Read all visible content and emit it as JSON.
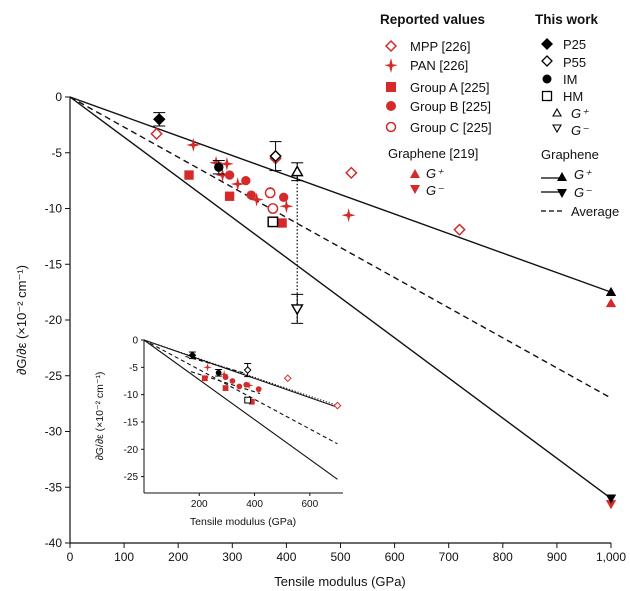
{
  "chart_data": [
    {
      "type": "scatter",
      "xlabel": "Tensile modulus (GPa)",
      "ylabel": "∂G/∂ε (×10⁻² cm⁻¹)",
      "xlim": [
        0,
        1000
      ],
      "ylim": [
        -40,
        0
      ],
      "xticks": [
        "0",
        "100",
        "200",
        "300",
        "400",
        "500",
        "600",
        "700",
        "800",
        "900",
        "1,000"
      ],
      "xtick_values": [
        0,
        100,
        200,
        300,
        400,
        500,
        600,
        700,
        800,
        900,
        1000
      ],
      "yticks": [
        "0",
        "-5",
        "-10",
        "-15",
        "-20",
        "-25",
        "-30",
        "-35",
        "-40"
      ],
      "ytick_values": [
        0,
        -5,
        -10,
        -15,
        -20,
        -25,
        -30,
        -35,
        -40
      ],
      "legend": {
        "reported_title": "Reported values",
        "this_work_title": "This work",
        "graphene_title": "Graphene",
        "reported": [
          "MPP [226]",
          "PAN [226]",
          "Group A [225]",
          "Group B [225]",
          "Group C [225]"
        ],
        "graphene_ref": "Graphene [219]",
        "gplus": "G⁺",
        "gminus": "G⁻",
        "this_work": [
          "P25",
          "P55",
          "IM",
          "HM"
        ],
        "average": "Average"
      },
      "lines": [
        {
          "name": "G⁺",
          "style": "solid",
          "x": [
            0,
            1000
          ],
          "y": [
            0,
            -17.5
          ]
        },
        {
          "name": "G⁻",
          "style": "solid",
          "x": [
            0,
            1000
          ],
          "y": [
            0,
            -36.0
          ]
        },
        {
          "name": "Average",
          "style": "dashed",
          "x": [
            0,
            1000
          ],
          "y": [
            0,
            -27.0
          ]
        }
      ],
      "series": [
        {
          "name": "MPP [226]",
          "marker": "diamond-open",
          "color": "#d42a2a",
          "points": [
            [
              160,
              -3.3
            ],
            [
              380,
              -5.5
            ],
            [
              520,
              -6.8
            ],
            [
              720,
              -11.9
            ]
          ]
        },
        {
          "name": "PAN [226]",
          "marker": "star",
          "color": "#d42a2a",
          "points": [
            [
              228,
              -4.3
            ],
            [
              270,
              -5.9
            ],
            [
              290,
              -6.0
            ],
            [
              282,
              -7.0
            ],
            [
              310,
              -7.8
            ],
            [
              345,
              -9.2
            ],
            [
              400,
              -9.8
            ],
            [
              515,
              -10.6
            ]
          ]
        },
        {
          "name": "Group A [225]",
          "marker": "square",
          "color": "#d42a2a",
          "points": [
            [
              220,
              -7.0
            ],
            [
              295,
              -8.9
            ],
            [
              392,
              -11.3
            ]
          ]
        },
        {
          "name": "Group B [225]",
          "marker": "circle",
          "color": "#d42a2a",
          "points": [
            [
              295,
              -7.0
            ],
            [
              325,
              -7.5
            ],
            [
              335,
              -8.8
            ],
            [
              370,
              -8.5
            ],
            [
              395,
              -9.0
            ]
          ]
        },
        {
          "name": "Group C [225]",
          "marker": "circle-open",
          "color": "#d42a2a",
          "points": [
            [
              370,
              -8.6
            ],
            [
              375,
              -10.0
            ]
          ]
        },
        {
          "name": "Graphene [219] G⁺",
          "marker": "triangle-up",
          "color": "#d42a2a",
          "points": [
            [
              1000,
              -18.5
            ]
          ]
        },
        {
          "name": "Graphene [219] G⁻",
          "marker": "triangle-down",
          "color": "#d42a2a",
          "points": [
            [
              1000,
              -36.5
            ]
          ]
        },
        {
          "name": "P25",
          "marker": "diamond",
          "color": "#000000",
          "points": [
            [
              165,
              -2.0
            ]
          ],
          "err": [
            0.6
          ]
        },
        {
          "name": "P55",
          "marker": "diamond-open",
          "color": "#000000",
          "points": [
            [
              380,
              -5.3
            ]
          ],
          "err": [
            1.3
          ]
        },
        {
          "name": "IM",
          "marker": "circle",
          "color": "#000000",
          "points": [
            [
              275,
              -6.3
            ]
          ],
          "err": [
            0.6
          ]
        },
        {
          "name": "HM",
          "marker": "square-open",
          "color": "#000000",
          "points": [
            [
              375,
              -11.2
            ]
          ]
        },
        {
          "name": "G⁺ (this work)",
          "marker": "triangle-up-open",
          "color": "#000000",
          "points": [
            [
              420,
              -6.7
            ]
          ],
          "err": [
            0.8
          ]
        },
        {
          "name": "G⁻ (this work)",
          "marker": "triangle-down-open",
          "color": "#000000",
          "points": [
            [
              420,
              -19.0
            ]
          ],
          "err": [
            1.3
          ]
        },
        {
          "name": "Graphene G⁺",
          "marker": "triangle-up",
          "color": "#000000",
          "points": [
            [
              1000,
              -17.5
            ]
          ]
        },
        {
          "name": "Graphene G⁻",
          "marker": "triangle-down",
          "color": "#000000",
          "points": [
            [
              1000,
              -36.0
            ]
          ]
        }
      ]
    },
    {
      "type": "scatter",
      "xlabel": "Tensile modulus (GPa)",
      "ylabel": "∂G/∂ε (×10⁻² cm⁻¹)",
      "xlim": [
        0,
        720
      ],
      "ylim": [
        -28,
        0
      ],
      "xticks": [
        "200",
        "400",
        "600"
      ],
      "xtick_values": [
        200,
        400,
        600
      ],
      "yticks": [
        "0",
        "-5",
        "-10",
        "-15",
        "-20",
        "-25"
      ],
      "ytick_values": [
        0,
        -5,
        -10,
        -15,
        -20,
        -25
      ],
      "lines": [
        {
          "style": "solid",
          "x": [
            0,
            700
          ],
          "y": [
            0,
            -12.3
          ]
        },
        {
          "style": "dotted",
          "x": [
            0,
            700
          ],
          "y": [
            0,
            -12.0
          ]
        },
        {
          "style": "dashed",
          "x": [
            0,
            700
          ],
          "y": [
            0,
            -19.0
          ]
        },
        {
          "style": "solid",
          "x": [
            0,
            700
          ],
          "y": [
            0,
            -25.5
          ]
        },
        {
          "style": "dashed",
          "x": [
            170,
            420
          ],
          "y": [
            -5.8,
            -9.8
          ]
        },
        {
          "style": "dashed",
          "x": [
            150,
            360
          ],
          "y": [
            -3.0,
            -6.0
          ]
        }
      ],
      "series": [
        {
          "name": "MPP",
          "marker": "diamond-open",
          "color": "#d42a2a",
          "points": [
            [
              520,
              -7.0
            ],
            [
              700,
              -12.0
            ]
          ]
        },
        {
          "name": "PAN",
          "marker": "star",
          "color": "#d42a2a",
          "points": [
            [
              230,
              -5.0
            ],
            [
              290,
              -6.3
            ],
            [
              380,
              -8.3
            ]
          ]
        },
        {
          "name": "Group A",
          "marker": "square",
          "color": "#d42a2a",
          "points": [
            [
              220,
              -7.0
            ],
            [
              295,
              -8.8
            ],
            [
              390,
              -11.3
            ]
          ]
        },
        {
          "name": "Group B",
          "marker": "circle",
          "color": "#d42a2a",
          "points": [
            [
              295,
              -6.8
            ],
            [
              320,
              -7.5
            ],
            [
              345,
              -8.5
            ],
            [
              370,
              -8.2
            ],
            [
              415,
              -9.0
            ]
          ]
        },
        {
          "name": "P25",
          "marker": "diamond",
          "color": "#000000",
          "points": [
            [
              175,
              -2.8
            ]
          ],
          "err": [
            0.6
          ]
        },
        {
          "name": "P55",
          "marker": "diamond-open",
          "color": "#000000",
          "points": [
            [
              375,
              -5.5
            ]
          ],
          "err": [
            1.2
          ]
        },
        {
          "name": "IM",
          "marker": "circle",
          "color": "#000000",
          "points": [
            [
              270,
              -6.0
            ]
          ],
          "err": [
            0.6
          ]
        },
        {
          "name": "HM",
          "marker": "square-open",
          "color": "#000000",
          "points": [
            [
              375,
              -11.0
            ]
          ]
        }
      ]
    }
  ]
}
